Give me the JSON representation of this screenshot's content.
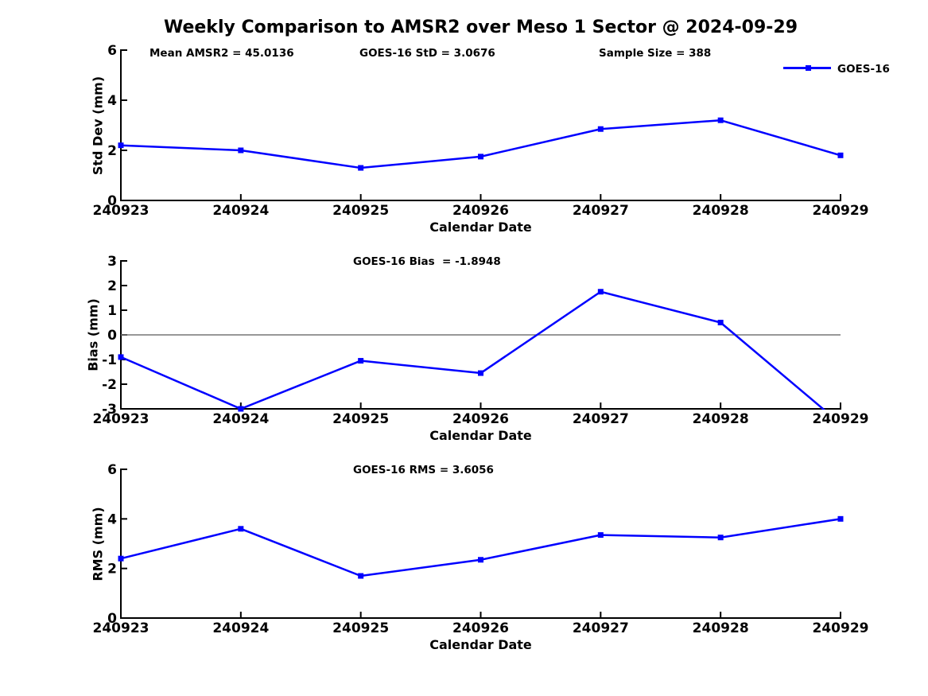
{
  "title": "Weekly Comparison to AMSR2 over Meso 1 Sector @ 2024-09-29",
  "legend": {
    "label": "GOES-16",
    "color": "#0000FF",
    "marker": "square"
  },
  "colors": {
    "line": "#0000FF",
    "zero_line": "#777777",
    "axis": "#000000",
    "background": "#FFFFFF",
    "text": "#000000"
  },
  "stats": {
    "mean_amsr2": 45.0136,
    "goes16_std": 3.0676,
    "sample_size": 388,
    "goes16_bias": -1.8948,
    "goes16_rms": 3.6056
  },
  "chart_data": [
    {
      "type": "line",
      "name": "std-dev-subplot",
      "ylabel": "Std Dev (mm)",
      "xlabel": "Calendar Date",
      "ylim": [
        0,
        6
      ],
      "yticks": [
        0,
        2,
        4,
        6
      ],
      "grid": false,
      "zero_line": false,
      "legend_position": "upper-right-above",
      "categories": [
        "240923",
        "240924",
        "240925",
        "240926",
        "240927",
        "240928",
        "240929"
      ],
      "series": [
        {
          "name": "GOES-16",
          "values": [
            2.2,
            2.0,
            1.3,
            1.75,
            2.85,
            3.2,
            1.8
          ]
        }
      ],
      "annotations": [
        "Mean AMSR2 = 45.0136",
        "GOES-16 StD = 3.0676",
        "Sample Size = 388"
      ]
    },
    {
      "type": "line",
      "name": "bias-subplot",
      "ylabel": "Bias (mm)",
      "xlabel": "Calendar Date",
      "ylim": [
        -3,
        3
      ],
      "yticks": [
        -3,
        -2,
        -1,
        0,
        1,
        2,
        3
      ],
      "grid": false,
      "zero_line": true,
      "categories": [
        "240923",
        "240924",
        "240925",
        "240926",
        "240927",
        "240928",
        "240929"
      ],
      "series": [
        {
          "name": "GOES-16",
          "values": [
            -0.9,
            -3.0,
            -1.05,
            -1.55,
            1.75,
            0.5,
            -3.6
          ]
        }
      ],
      "annotations": [
        "GOES-16 Bias  = -1.8948"
      ]
    },
    {
      "type": "line",
      "name": "rms-subplot",
      "ylabel": "RMS (mm)",
      "xlabel": "Calendar Date",
      "ylim": [
        0,
        6
      ],
      "yticks": [
        0,
        2,
        4,
        6
      ],
      "grid": false,
      "zero_line": false,
      "categories": [
        "240923",
        "240924",
        "240925",
        "240926",
        "240927",
        "240928",
        "240929"
      ],
      "series": [
        {
          "name": "GOES-16",
          "values": [
            2.4,
            3.6,
            1.7,
            2.35,
            3.35,
            3.25,
            4.0
          ]
        }
      ],
      "annotations": [
        "GOES-16 RMS = 3.6056"
      ]
    }
  ]
}
